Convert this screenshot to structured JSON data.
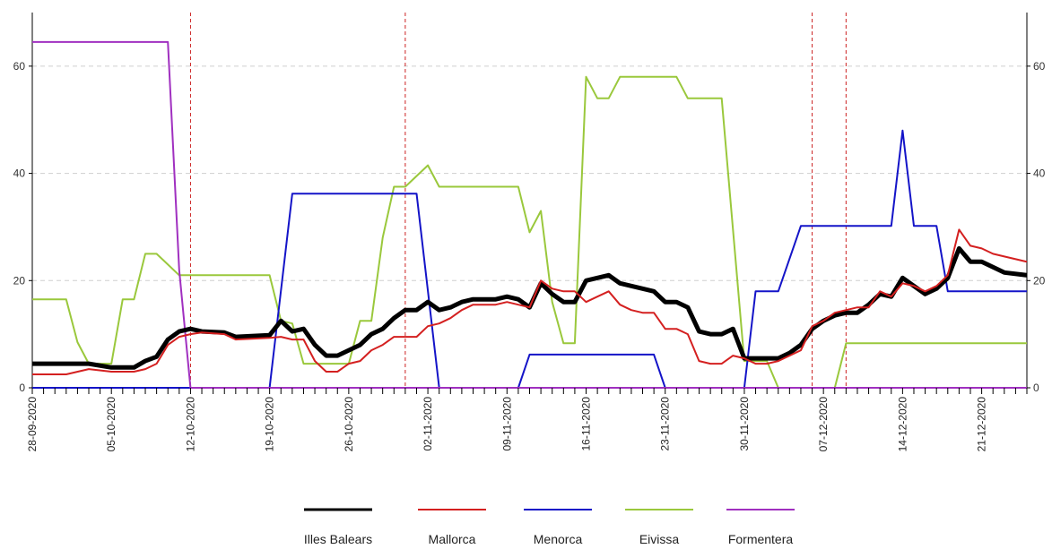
{
  "chart_data": {
    "type": "line",
    "title": "",
    "xlabel": "",
    "ylabel": "",
    "x_start": "2020-09-28",
    "x_end": "2020-12-25",
    "ylim": [
      0,
      70
    ],
    "yticks": [
      0,
      20,
      40,
      60
    ],
    "xtick_labels": [
      "28-09-2020",
      "05-10-2020",
      "12-10-2020",
      "19-10-2020",
      "26-10-2020",
      "02-11-2020",
      "09-11-2020",
      "16-11-2020",
      "23-11-2020",
      "30-11-2020",
      "07-12-2020",
      "14-12-2020",
      "21-12-2020"
    ],
    "grid": "horizontal-dashed",
    "legend_position": "bottom",
    "vlines": [
      "2020-10-12",
      "2020-10-31",
      "2020-12-06",
      "2020-12-09"
    ],
    "series": [
      {
        "name": "Illes Balears",
        "color": "#000000",
        "x": [
          "2020-09-28",
          "2020-10-01",
          "2020-10-03",
          "2020-10-05",
          "2020-10-07",
          "2020-10-08",
          "2020-10-09",
          "2020-10-10",
          "2020-10-11",
          "2020-10-12",
          "2020-10-13",
          "2020-10-15",
          "2020-10-16",
          "2020-10-19",
          "2020-10-20",
          "2020-10-21",
          "2020-10-22",
          "2020-10-23",
          "2020-10-24",
          "2020-10-25",
          "2020-10-26",
          "2020-10-27",
          "2020-10-28",
          "2020-10-29",
          "2020-10-30",
          "2020-10-31",
          "2020-11-01",
          "2020-11-02",
          "2020-11-03",
          "2020-11-04",
          "2020-11-05",
          "2020-11-06",
          "2020-11-07",
          "2020-11-08",
          "2020-11-09",
          "2020-11-10",
          "2020-11-11",
          "2020-11-12",
          "2020-11-13",
          "2020-11-14",
          "2020-11-15",
          "2020-11-16",
          "2020-11-17",
          "2020-11-18",
          "2020-11-19",
          "2020-11-20",
          "2020-11-21",
          "2020-11-22",
          "2020-11-23",
          "2020-11-24",
          "2020-11-25",
          "2020-11-26",
          "2020-11-27",
          "2020-11-28",
          "2020-11-29",
          "2020-11-30",
          "2020-12-01",
          "2020-12-02",
          "2020-12-03",
          "2020-12-04",
          "2020-12-05",
          "2020-12-06",
          "2020-12-07",
          "2020-12-08",
          "2020-12-09",
          "2020-12-10",
          "2020-12-11",
          "2020-12-12",
          "2020-12-13",
          "2020-12-14",
          "2020-12-15",
          "2020-12-16",
          "2020-12-17",
          "2020-12-18",
          "2020-12-19",
          "2020-12-20",
          "2020-12-21",
          "2020-12-22",
          "2020-12-23",
          "2020-12-25"
        ],
        "y": [
          4.5,
          4.5,
          4.5,
          3.8,
          3.8,
          5,
          5.8,
          9,
          10.5,
          11,
          10.5,
          10.3,
          9.5,
          9.8,
          12.5,
          10.5,
          11,
          8,
          6,
          6,
          7,
          8,
          10,
          11,
          13,
          14.5,
          14.5,
          16,
          14.5,
          15,
          16,
          16.5,
          16.5,
          16.5,
          17,
          16.5,
          15,
          19.5,
          17.5,
          16,
          16,
          20,
          20.5,
          21,
          19.5,
          19,
          18.5,
          18,
          16,
          16,
          15,
          10.5,
          10,
          10,
          11,
          5.5,
          5.5,
          5.5,
          5.5,
          6.5,
          8,
          11,
          12.5,
          13.5,
          14,
          14,
          15.5,
          17.5,
          17,
          20.5,
          19,
          17.5,
          18.5,
          20.5,
          26,
          23.5,
          23.5,
          22.5,
          21.5,
          21
        ]
      },
      {
        "name": "Mallorca",
        "color": "#d42020",
        "x": [
          "2020-09-28",
          "2020-10-01",
          "2020-10-03",
          "2020-10-05",
          "2020-10-07",
          "2020-10-08",
          "2020-10-09",
          "2020-10-10",
          "2020-10-11",
          "2020-10-12",
          "2020-10-13",
          "2020-10-15",
          "2020-10-16",
          "2020-10-19",
          "2020-10-20",
          "2020-10-21",
          "2020-10-22",
          "2020-10-23",
          "2020-10-24",
          "2020-10-25",
          "2020-10-26",
          "2020-10-27",
          "2020-10-28",
          "2020-10-29",
          "2020-10-30",
          "2020-10-31",
          "2020-11-01",
          "2020-11-02",
          "2020-11-03",
          "2020-11-04",
          "2020-11-05",
          "2020-11-06",
          "2020-11-07",
          "2020-11-08",
          "2020-11-09",
          "2020-11-10",
          "2020-11-11",
          "2020-11-12",
          "2020-11-13",
          "2020-11-14",
          "2020-11-15",
          "2020-11-16",
          "2020-11-17",
          "2020-11-18",
          "2020-11-19",
          "2020-11-20",
          "2020-11-21",
          "2020-11-22",
          "2020-11-23",
          "2020-11-24",
          "2020-11-25",
          "2020-11-26",
          "2020-11-27",
          "2020-11-28",
          "2020-11-29",
          "2020-11-30",
          "2020-12-01",
          "2020-12-02",
          "2020-12-03",
          "2020-12-04",
          "2020-12-05",
          "2020-12-06",
          "2020-12-07",
          "2020-12-08",
          "2020-12-09",
          "2020-12-10",
          "2020-12-11",
          "2020-12-12",
          "2020-12-13",
          "2020-12-14",
          "2020-12-15",
          "2020-12-16",
          "2020-12-17",
          "2020-12-18",
          "2020-12-19",
          "2020-12-20",
          "2020-12-21",
          "2020-12-22",
          "2020-12-23",
          "2020-12-25"
        ],
        "y": [
          2.5,
          2.5,
          3.5,
          3,
          3,
          3.5,
          4.5,
          8,
          9.5,
          10,
          10.3,
          10,
          9,
          9.3,
          9.5,
          9,
          9,
          5,
          3,
          3,
          4.5,
          5,
          7,
          8,
          9.5,
          9.5,
          9.5,
          11.5,
          12,
          13,
          14.5,
          15.5,
          15.5,
          15.5,
          16,
          15.5,
          15,
          20,
          18.5,
          18,
          18,
          16,
          17,
          18,
          15.5,
          14.5,
          14,
          14,
          11,
          11,
          10,
          5,
          4.5,
          4.5,
          6,
          5.5,
          4.5,
          4.5,
          5,
          6,
          7,
          11.5,
          12.5,
          14,
          14.5,
          15,
          15,
          18,
          17,
          19.5,
          19,
          18,
          19,
          21,
          29.5,
          26.5,
          26,
          25,
          24.5,
          23.5
        ]
      },
      {
        "name": "Menorca",
        "color": "#1414c8",
        "x": [
          "2020-09-28",
          "2020-10-19",
          "2020-10-21",
          "2020-11-01",
          "2020-11-03",
          "2020-11-10",
          "2020-11-11",
          "2020-11-22",
          "2020-11-23",
          "2020-11-30",
          "2020-12-01",
          "2020-12-03",
          "2020-12-05",
          "2020-12-13",
          "2020-12-14",
          "2020-12-15",
          "2020-12-17",
          "2020-12-18",
          "2020-12-25"
        ],
        "y": [
          0,
          0,
          36.2,
          36.2,
          0,
          0,
          6.2,
          6.2,
          0,
          0,
          18,
          18,
          30.2,
          30.2,
          48,
          30.2,
          30.2,
          18,
          18
        ]
      },
      {
        "name": "Eivissa",
        "color": "#9ac83c",
        "x": [
          "2020-09-28",
          "2020-10-01",
          "2020-10-02",
          "2020-10-03",
          "2020-10-05",
          "2020-10-06",
          "2020-10-07",
          "2020-10-08",
          "2020-10-09",
          "2020-10-11",
          "2020-10-12",
          "2020-10-19",
          "2020-10-20",
          "2020-10-21",
          "2020-10-22",
          "2020-10-23",
          "2020-10-26",
          "2020-10-27",
          "2020-10-28",
          "2020-10-29",
          "2020-10-30",
          "2020-10-31",
          "2020-11-02",
          "2020-11-03",
          "2020-11-04",
          "2020-11-10",
          "2020-11-11",
          "2020-11-12",
          "2020-11-13",
          "2020-11-14",
          "2020-11-15",
          "2020-11-16",
          "2020-11-17",
          "2020-11-18",
          "2020-11-19",
          "2020-11-24",
          "2020-11-25",
          "2020-11-27",
          "2020-11-28",
          "2020-11-30",
          "2020-12-02",
          "2020-12-03",
          "2020-12-08",
          "2020-12-09",
          "2020-12-25"
        ],
        "y": [
          16.5,
          16.5,
          8.5,
          4.5,
          4.5,
          16.5,
          16.5,
          25,
          25,
          21,
          21,
          21,
          12.5,
          12,
          4.5,
          4.5,
          4.5,
          12.5,
          12.5,
          28,
          37.5,
          37.5,
          41.5,
          37.5,
          37.5,
          37.5,
          29,
          33,
          16,
          8.3,
          8.3,
          58,
          54,
          54,
          58,
          58,
          54,
          54,
          54,
          5,
          5,
          0,
          0,
          8.3,
          8.3
        ]
      },
      {
        "name": "Formentera",
        "color": "#a030c0",
        "x": [
          "2020-09-28",
          "2020-10-10",
          "2020-10-11",
          "2020-10-12",
          "2020-12-25"
        ],
        "y": [
          64.5,
          64.5,
          22,
          0,
          0
        ]
      }
    ]
  }
}
